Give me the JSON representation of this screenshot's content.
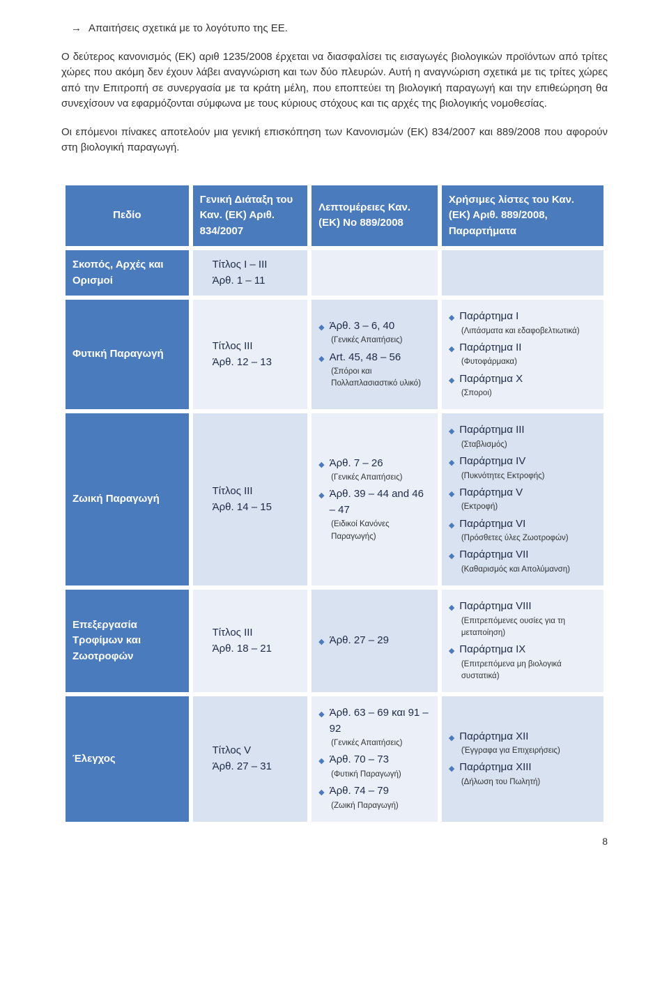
{
  "bullet": "Απαιτήσεις σχετικά με το λογότυπο της ΕΕ.",
  "para1": "Ο δεύτερος κανονισμός (ΕΚ) αριθ 1235/2008 έρχεται να διασφαλίσει τις εισαγωγές βιολογικών προϊόντων από τρίτες χώρες που ακόμη δεν έχουν λάβει αναγνώριση και των δύο πλευρών. Αυτή η αναγνώριση σχετικά με τις τρίτες χώρες από την Επιτροπή σε συνεργασία με τα κράτη μέλη, που εποπτεύει τη βιολογική παραγωγή και την επιθεώρηση θα συνεχίσουν να εφαρμόζονται σύμφωνα με τους κύριους στόχους και τις αρχές της βιολογικής νομοθεσίας.",
  "para2": "Οι επόμενοι πίνακες αποτελούν μια γενική επισκόπηση των Κανονισμών (ΕΚ) 834/2007 και 889/2008 που αφορούν στη βιολογική παραγωγή.",
  "headers": {
    "c0": "Πεδίο",
    "c1": "Γενική Διάταξη του Καν. (ΕΚ) Αριθ.  834/2007",
    "c2": "Λεπτομέρειες Καν. (ΕΚ) No 889/2008",
    "c3": "Χρήσιμες λίστες του Καν. (ΕΚ) Αριθ. 889/2008, Παραρτήματα"
  },
  "rows": {
    "r0": {
      "head": "Σκοπός, Αρχές και Ορισμοί",
      "c1": "Τίτλος  I – III\nΆρθ. 1 – 11"
    },
    "r1": {
      "head": "Φυτική Παραγωγή",
      "c1": "Τίτλος  III\nΆρθ. 12 – 13",
      "c2": [
        {
          "t": "Άρθ. 3 – 6, 40",
          "s": "(Γενικές Απαιτήσεις)"
        },
        {
          "t": "Art. 45, 48 – 56",
          "s": "(Σπόροι και Πολλαπλασιαστικό υλικό)"
        }
      ],
      "c3": [
        {
          "t": "Παράρτημα I",
          "s": "(Λιπάσματα και εδαφοβελτιωτικά)"
        },
        {
          "t": "Παράρτημα II",
          "s": "(Φυτοφάρμακα)"
        },
        {
          "t": "Παράρτημα X",
          "s": "(Σποροι)"
        }
      ]
    },
    "r2": {
      "head": "Ζωική Παραγωγή",
      "c1": "Τίτλος  III\nΆρθ. 14 – 15",
      "c2": [
        {
          "t": "Άρθ. 7 – 26",
          "s": "(Γενικές Απαιτήσεις)"
        },
        {
          "t": "Άρθ. 39 – 44 and 46 – 47",
          "s": "(Ειδικοί Κανόνες Παραγωγής)"
        }
      ],
      "c3": [
        {
          "t": "Παράρτημα III",
          "s": "(Σταβλισμός)"
        },
        {
          "t": "Παράρτημα IV",
          "s": "(Πυκνότητες Εκτροφής)"
        },
        {
          "t": "Παράρτημα V",
          "s": "(Εκτροφή)"
        },
        {
          "t": "Παράρτημα VI",
          "s": "(Πρόσθετες ύλες Ζωοτροφών)"
        },
        {
          "t": "Παράρτημα VII",
          "s": "(Καθαρισμός και Απολύμανση)"
        }
      ]
    },
    "r3": {
      "head": "Επεξεργασία Τροφίμων και Ζωοτροφών",
      "c1": "Τίτλος  III\nΆρθ. 18 – 21",
      "c2": [
        {
          "t": "Άρθ. 27 – 29"
        }
      ],
      "c3": [
        {
          "t": "Παράρτημα VIII",
          "s": "(Επιτρεπόμενες ουσίες για τη μεταποίηση)"
        },
        {
          "t": "Παράρτημα IX",
          "s": "(Επιτρεπόμενα μη βιολογικά συστατικά)"
        }
      ]
    },
    "r4": {
      "head": "Έλεγχος",
      "c1": "Τίτλος  V\nΆρθ. 27 – 31",
      "c2": [
        {
          "t": "Άρθ. 63 – 69 και 91 – 92",
          "s": "(Γενικές Απαιτήσεις)"
        },
        {
          "t": "Άρθ. 70 – 73",
          "s": "(Φυτική Παραγωγή)"
        },
        {
          "t": "Άρθ. 74 – 79",
          "s": "(Ζωική Παραγωγή)"
        }
      ],
      "c3": [
        {
          "t": "Παράρτημα XII",
          "s": "(Έγγραφα για Επιχειρήσεις)"
        },
        {
          "t": "Παράρτημα XIII",
          "s": "(Δήλωση του Πωλητή)"
        }
      ]
    }
  },
  "page": "8"
}
